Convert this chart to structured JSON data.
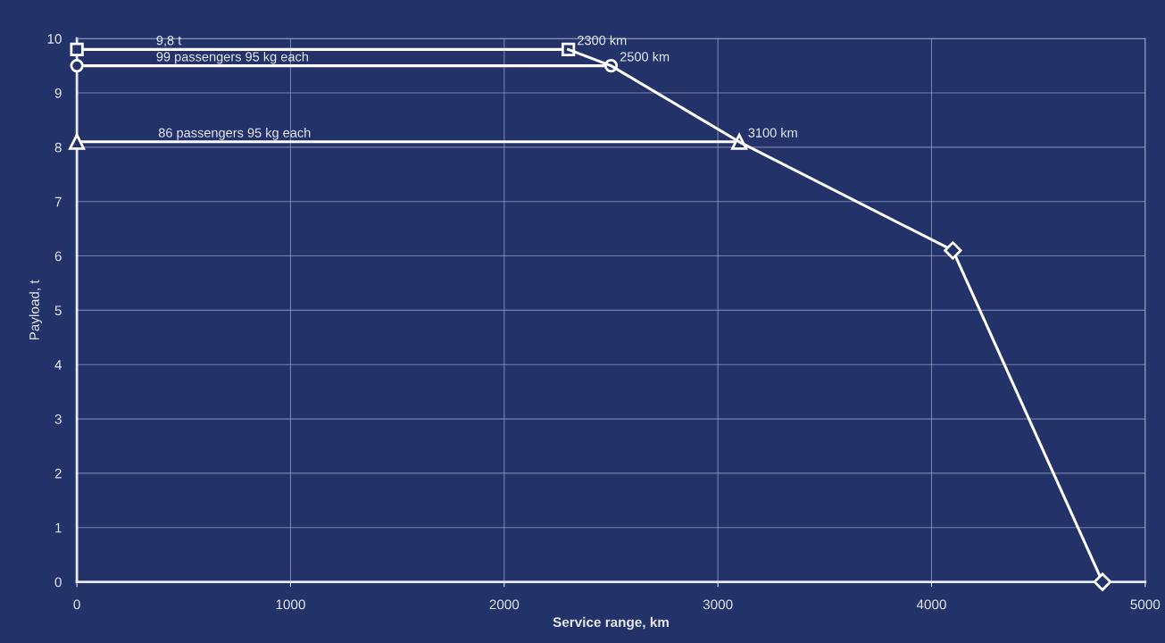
{
  "chart_data": {
    "type": "line",
    "xlabel": "Service range, km",
    "ylabel": "Payload, t",
    "series": [
      {
        "color": "#ffffff",
        "x": [
          0,
          2300
        ],
        "values": [
          9.8,
          9.8
        ],
        "marker": "square"
      },
      {
        "color": "#ffffff",
        "x": [
          0,
          2500
        ],
        "values": [
          9.5,
          9.5
        ],
        "marker": "circle"
      },
      {
        "color": "#ffffff",
        "x": [
          0,
          3100
        ],
        "values": [
          8.1,
          8.1
        ],
        "marker": "triangle"
      },
      {
        "color": "#ffffff",
        "x": [
          2300,
          2500,
          3100,
          4100,
          4800
        ],
        "values": [
          9.8,
          9.5,
          8.1,
          6.1,
          0
        ],
        "marker": "none"
      },
      {
        "type": "scatter",
        "color": "#ffffff",
        "x": [
          4100,
          4800
        ],
        "values": [
          6.1,
          0
        ],
        "marker": "diamond"
      }
    ],
    "annotations": [
      {
        "text": "9,8 t",
        "x": 330,
        "y": 9.8
      },
      {
        "text": "99 passengers 95 kg each",
        "x": 330,
        "y": 9.5
      },
      {
        "text": "86 passengers 95 kg each",
        "x": 340,
        "y": 8.1
      },
      {
        "text": "2300 km",
        "x": 2300,
        "y": 9.8
      },
      {
        "text": "2500 km",
        "x": 2500,
        "y": 9.5
      },
      {
        "text": "3100 km",
        "x": 3100,
        "y": 8.1
      }
    ],
    "xlim": [
      0,
      5000
    ],
    "xticks": [
      0,
      1000,
      2000,
      3000,
      4000,
      5000
    ],
    "ylim": [
      0,
      10
    ],
    "yticks": [
      0,
      1,
      2,
      3,
      4,
      5,
      6,
      7,
      8,
      9,
      10
    ],
    "grid": true,
    "legend": false
  }
}
